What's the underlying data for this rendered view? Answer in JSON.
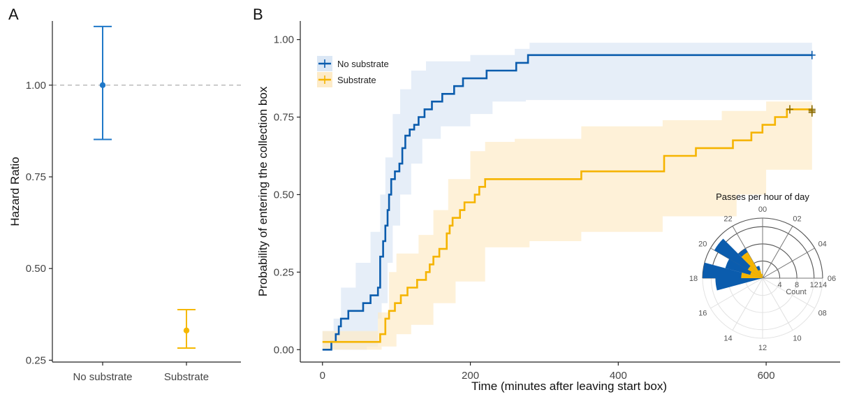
{
  "chart_data": [
    {
      "panel_label": "A",
      "type": "scatter",
      "ylabel": "Hazard Ratio",
      "xlabel": "",
      "categories": [
        "No substrate",
        "Substrate"
      ],
      "ylim": [
        0.245,
        1.175
      ],
      "yticks": [
        "0.25",
        "0.50",
        "0.75",
        "1.00"
      ],
      "reference_line": 1.0,
      "points": [
        {
          "category": "No substrate",
          "estimate": 1.0,
          "lower": 0.852,
          "upper": 1.16,
          "color": "#1f78c8"
        },
        {
          "category": "Substrate",
          "estimate": 0.331,
          "lower": 0.283,
          "upper": 0.388,
          "color": "#f5b800"
        }
      ]
    },
    {
      "panel_label": "B",
      "type": "line",
      "xlabel": "Time (minutes after leaving start box)",
      "ylabel": "Probability of entering the collection box",
      "xlim": [
        -30,
        700
      ],
      "ylim": [
        -0.04,
        1.06
      ],
      "xticks": [
        "0",
        "200",
        "400",
        "600"
      ],
      "yticks": [
        "0.00",
        "0.25",
        "0.50",
        "0.75",
        "1.00"
      ],
      "legend_position": "top-left",
      "series": [
        {
          "name": "No substrate",
          "color": "#0b5cad",
          "band_color": "#dbe7f5",
          "steps": [
            [
              0,
              0
            ],
            [
              12,
              0.025
            ],
            [
              18,
              0.05
            ],
            [
              22,
              0.075
            ],
            [
              25,
              0.1
            ],
            [
              35,
              0.125
            ],
            [
              55,
              0.15
            ],
            [
              65,
              0.175
            ],
            [
              75,
              0.2
            ],
            [
              78,
              0.3
            ],
            [
              82,
              0.35
            ],
            [
              85,
              0.4
            ],
            [
              88,
              0.45
            ],
            [
              90,
              0.5
            ],
            [
              93,
              0.55
            ],
            [
              98,
              0.575
            ],
            [
              104,
              0.6
            ],
            [
              108,
              0.65
            ],
            [
              112,
              0.69
            ],
            [
              118,
              0.71
            ],
            [
              124,
              0.725
            ],
            [
              130,
              0.75
            ],
            [
              138,
              0.775
            ],
            [
              148,
              0.8
            ],
            [
              162,
              0.825
            ],
            [
              178,
              0.85
            ],
            [
              190,
              0.875
            ],
            [
              222,
              0.9
            ],
            [
              262,
              0.925
            ],
            [
              278,
              0.95
            ],
            [
              662,
              0.95
            ]
          ],
          "ci_lower": [
            [
              0,
              0
            ],
            [
              60,
              0.01
            ],
            [
              75,
              0.1
            ],
            [
              80,
              0.15
            ],
            [
              88,
              0.28
            ],
            [
              95,
              0.4
            ],
            [
              105,
              0.5
            ],
            [
              120,
              0.6
            ],
            [
              135,
              0.68
            ],
            [
              160,
              0.72
            ],
            [
              200,
              0.76
            ],
            [
              230,
              0.8
            ],
            [
              275,
              0.805
            ],
            [
              662,
              0.805
            ]
          ],
          "ci_upper": [
            [
              0,
              0.06
            ],
            [
              15,
              0.1
            ],
            [
              25,
              0.2
            ],
            [
              45,
              0.28
            ],
            [
              65,
              0.38
            ],
            [
              78,
              0.5
            ],
            [
              85,
              0.62
            ],
            [
              95,
              0.76
            ],
            [
              105,
              0.84
            ],
            [
              120,
              0.9
            ],
            [
              140,
              0.93
            ],
            [
              200,
              0.95
            ],
            [
              260,
              0.97
            ],
            [
              280,
              0.99
            ],
            [
              662,
              0.99
            ]
          ]
        },
        {
          "name": "Substrate",
          "color": "#f5b400",
          "band_color": "#fdebc8",
          "steps": [
            [
              0,
              0.025
            ],
            [
              78,
              0.05
            ],
            [
              85,
              0.1
            ],
            [
              90,
              0.125
            ],
            [
              98,
              0.15
            ],
            [
              106,
              0.175
            ],
            [
              115,
              0.2
            ],
            [
              128,
              0.225
            ],
            [
              140,
              0.25
            ],
            [
              145,
              0.275
            ],
            [
              150,
              0.3
            ],
            [
              158,
              0.325
            ],
            [
              168,
              0.375
            ],
            [
              172,
              0.4
            ],
            [
              176,
              0.425
            ],
            [
              186,
              0.45
            ],
            [
              192,
              0.475
            ],
            [
              206,
              0.5
            ],
            [
              212,
              0.525
            ],
            [
              220,
              0.55
            ],
            [
              350,
              0.575
            ],
            [
              462,
              0.625
            ],
            [
              505,
              0.65
            ],
            [
              555,
              0.675
            ],
            [
              580,
              0.7
            ],
            [
              595,
              0.725
            ],
            [
              612,
              0.75
            ],
            [
              628,
              0.775
            ],
            [
              662,
              0.775
            ]
          ],
          "ci_lower": [
            [
              0,
              0
            ],
            [
              80,
              0.01
            ],
            [
              100,
              0.05
            ],
            [
              120,
              0.08
            ],
            [
              150,
              0.15
            ],
            [
              180,
              0.22
            ],
            [
              220,
              0.33
            ],
            [
              280,
              0.35
            ],
            [
              350,
              0.38
            ],
            [
              460,
              0.43
            ],
            [
              560,
              0.5
            ],
            [
              600,
              0.58
            ],
            [
              662,
              0.58
            ]
          ],
          "ci_upper": [
            [
              0,
              0.06
            ],
            [
              75,
              0.12
            ],
            [
              90,
              0.25
            ],
            [
              100,
              0.31
            ],
            [
              130,
              0.37
            ],
            [
              150,
              0.45
            ],
            [
              170,
              0.55
            ],
            [
              200,
              0.64
            ],
            [
              220,
              0.67
            ],
            [
              260,
              0.68
            ],
            [
              350,
              0.72
            ],
            [
              460,
              0.74
            ],
            [
              540,
              0.77
            ],
            [
              600,
              0.8
            ],
            [
              662,
              0.88
            ]
          ]
        }
      ],
      "censor_marks": [
        {
          "series": "No substrate",
          "points": [
            [
              662,
              0.95
            ]
          ]
        },
        {
          "series": "Substrate",
          "points": [
            [
              632,
              0.775
            ],
            [
              662,
              0.775
            ],
            [
              662,
              0.77
            ],
            [
              662,
              0.765
            ]
          ]
        }
      ]
    },
    {
      "type": "polar_bar",
      "title": "Passes per hour of day",
      "radial_axis_label": "Count",
      "radial_ticks": [
        "4",
        "8",
        "12",
        "14"
      ],
      "radial_max": 14,
      "hour_labels": [
        "00",
        "02",
        "04",
        "06",
        "08",
        "10",
        "12",
        "14",
        "16",
        "18",
        "20",
        "22"
      ],
      "series": [
        {
          "name": "No substrate",
          "color": "#0b5cad",
          "counts_by_hour": {
            "17": 11,
            "18": 14,
            "19": 9,
            "20": 13,
            "21": 8,
            "22": 3,
            "23": 1
          }
        },
        {
          "name": "Substrate",
          "color": "#f5b400",
          "counts_by_hour": {
            "18": 5,
            "19": 3,
            "20": 4,
            "21": 7,
            "22": 2,
            "23": 1
          }
        }
      ]
    }
  ]
}
